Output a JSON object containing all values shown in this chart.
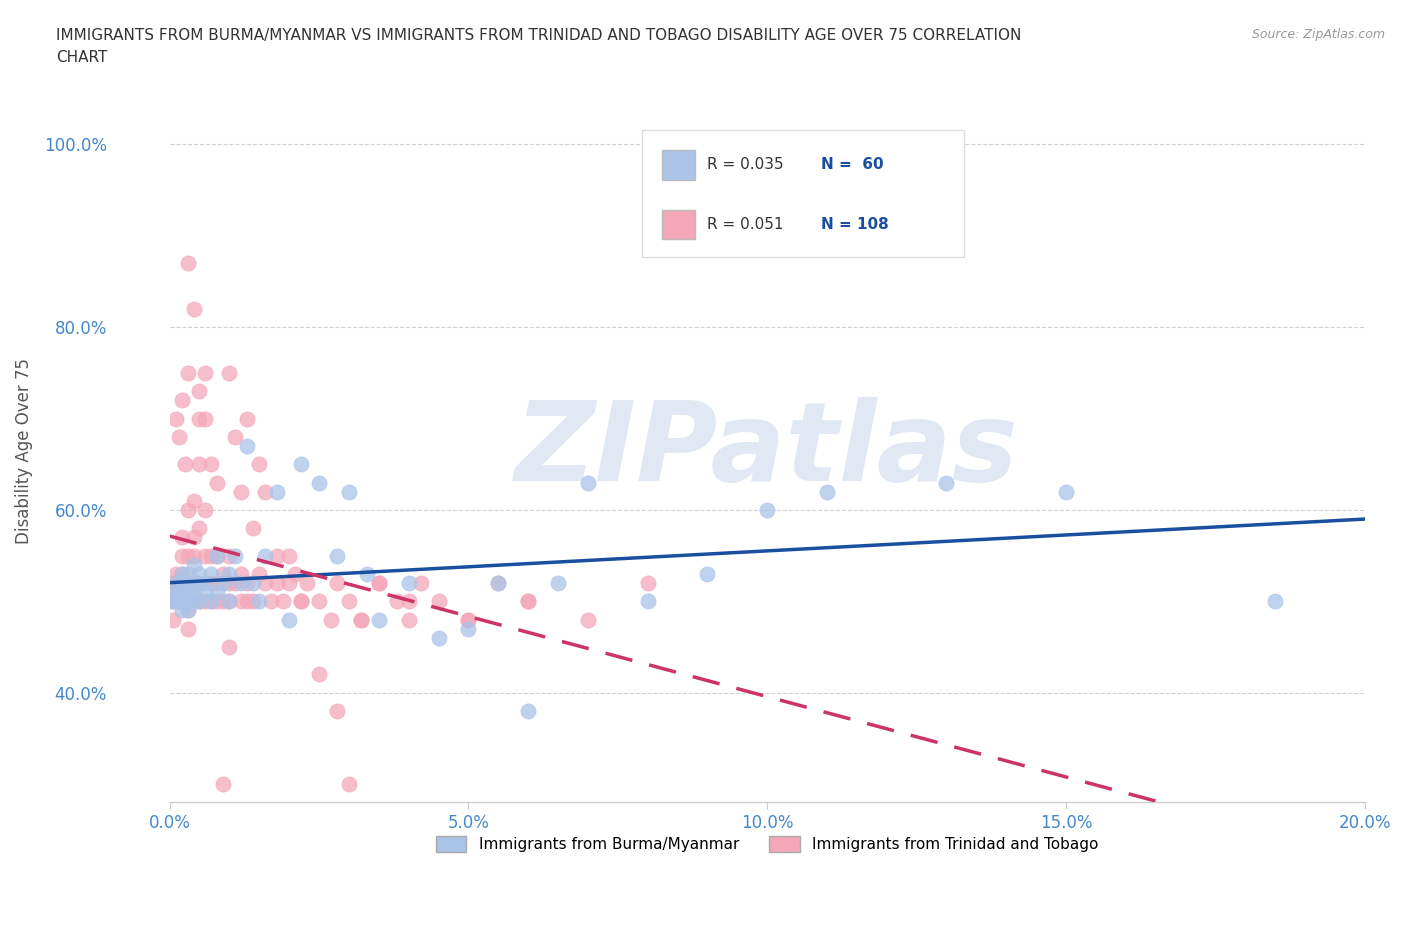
{
  "title": "IMMIGRANTS FROM BURMA/MYANMAR VS IMMIGRANTS FROM TRINIDAD AND TOBAGO DISABILITY AGE OVER 75 CORRELATION\nCHART",
  "source": "Source: ZipAtlas.com",
  "xlabel": "",
  "ylabel": "Disability Age Over 75",
  "xlim": [
    0.0,
    0.2
  ],
  "ylim": [
    0.28,
    1.05
  ],
  "xticks": [
    0.0,
    0.05,
    0.1,
    0.15,
    0.2
  ],
  "xtick_labels": [
    "0.0%",
    "5.0%",
    "10.0%",
    "15.0%",
    "20.0%"
  ],
  "yticks": [
    0.4,
    0.6,
    0.8,
    1.0
  ],
  "ytick_labels": [
    "40.0%",
    "60.0%",
    "80.0%",
    "100.0%"
  ],
  "color_burma": "#aac4e8",
  "color_trinidad": "#f4a7b9",
  "line_color_burma": "#1a4fa0",
  "line_color_trinidad": "#cc3366",
  "legend_R_burma": "R = 0.035",
  "legend_N_burma": "N =  60",
  "legend_R_trinidad": "R = 0.051",
  "legend_N_trinidad": "N = 108",
  "legend_label_burma": "Immigrants from Burma/Myanmar",
  "legend_label_trinidad": "Immigrants from Trinidad and Tobago",
  "watermark": "ZIPatlas",
  "grid_color": "#cccccc",
  "bg_color": "#ffffff",
  "title_color": "#333333",
  "tick_color": "#4488cc",
  "watermark_color": "#c8d8ea",
  "watermark_alpha": 0.55,
  "scatter_burma_x": [
    0.0005,
    0.001,
    0.001,
    0.001,
    0.0015,
    0.0015,
    0.002,
    0.002,
    0.002,
    0.002,
    0.0025,
    0.003,
    0.003,
    0.003,
    0.003,
    0.003,
    0.004,
    0.004,
    0.004,
    0.004,
    0.005,
    0.005,
    0.005,
    0.006,
    0.006,
    0.007,
    0.007,
    0.008,
    0.008,
    0.009,
    0.01,
    0.01,
    0.011,
    0.012,
    0.013,
    0.014,
    0.015,
    0.016,
    0.018,
    0.02,
    0.022,
    0.025,
    0.028,
    0.03,
    0.033,
    0.035,
    0.04,
    0.045,
    0.05,
    0.055,
    0.06,
    0.065,
    0.07,
    0.08,
    0.09,
    0.1,
    0.11,
    0.13,
    0.15,
    0.185
  ],
  "scatter_burma_y": [
    0.5,
    0.5,
    0.51,
    0.52,
    0.5,
    0.51,
    0.49,
    0.51,
    0.52,
    0.53,
    0.5,
    0.49,
    0.5,
    0.51,
    0.52,
    0.53,
    0.5,
    0.51,
    0.52,
    0.54,
    0.5,
    0.52,
    0.53,
    0.51,
    0.52,
    0.5,
    0.53,
    0.51,
    0.55,
    0.52,
    0.5,
    0.53,
    0.55,
    0.52,
    0.67,
    0.52,
    0.5,
    0.55,
    0.62,
    0.48,
    0.65,
    0.63,
    0.55,
    0.62,
    0.53,
    0.48,
    0.52,
    0.46,
    0.47,
    0.52,
    0.38,
    0.52,
    0.63,
    0.5,
    0.53,
    0.6,
    0.62,
    0.63,
    0.62,
    0.5
  ],
  "scatter_trinidad_x": [
    0.0003,
    0.0005,
    0.0005,
    0.001,
    0.001,
    0.001,
    0.001,
    0.001,
    0.0015,
    0.0015,
    0.0015,
    0.002,
    0.002,
    0.002,
    0.002,
    0.002,
    0.002,
    0.0025,
    0.0025,
    0.003,
    0.003,
    0.003,
    0.003,
    0.003,
    0.003,
    0.003,
    0.003,
    0.004,
    0.004,
    0.004,
    0.004,
    0.004,
    0.005,
    0.005,
    0.005,
    0.005,
    0.006,
    0.006,
    0.006,
    0.007,
    0.007,
    0.007,
    0.008,
    0.008,
    0.008,
    0.009,
    0.009,
    0.01,
    0.01,
    0.01,
    0.011,
    0.012,
    0.012,
    0.013,
    0.013,
    0.014,
    0.015,
    0.016,
    0.017,
    0.018,
    0.019,
    0.02,
    0.021,
    0.022,
    0.023,
    0.025,
    0.027,
    0.028,
    0.03,
    0.032,
    0.035,
    0.038,
    0.04,
    0.042,
    0.045,
    0.05,
    0.055,
    0.06,
    0.07,
    0.08,
    0.003,
    0.004,
    0.005,
    0.005,
    0.006,
    0.006,
    0.007,
    0.008,
    0.009,
    0.01,
    0.01,
    0.011,
    0.012,
    0.013,
    0.014,
    0.015,
    0.016,
    0.018,
    0.02,
    0.022,
    0.025,
    0.028,
    0.03,
    0.032,
    0.035,
    0.04,
    0.05,
    0.06
  ],
  "scatter_trinidad_y": [
    0.5,
    0.48,
    0.52,
    0.5,
    0.51,
    0.52,
    0.53,
    0.7,
    0.5,
    0.52,
    0.68,
    0.5,
    0.52,
    0.53,
    0.55,
    0.57,
    0.72,
    0.5,
    0.65,
    0.47,
    0.49,
    0.5,
    0.51,
    0.52,
    0.55,
    0.6,
    0.75,
    0.5,
    0.52,
    0.55,
    0.57,
    0.61,
    0.5,
    0.52,
    0.58,
    0.65,
    0.5,
    0.55,
    0.6,
    0.5,
    0.52,
    0.55,
    0.5,
    0.52,
    0.55,
    0.5,
    0.53,
    0.5,
    0.52,
    0.55,
    0.52,
    0.5,
    0.53,
    0.5,
    0.52,
    0.5,
    0.53,
    0.52,
    0.5,
    0.52,
    0.5,
    0.52,
    0.53,
    0.5,
    0.52,
    0.5,
    0.48,
    0.52,
    0.5,
    0.48,
    0.52,
    0.5,
    0.48,
    0.52,
    0.5,
    0.48,
    0.52,
    0.5,
    0.48,
    0.52,
    0.87,
    0.82,
    0.73,
    0.7,
    0.75,
    0.7,
    0.65,
    0.63,
    0.3,
    0.75,
    0.45,
    0.68,
    0.62,
    0.7,
    0.58,
    0.65,
    0.62,
    0.55,
    0.55,
    0.5,
    0.42,
    0.38,
    0.3,
    0.48,
    0.52,
    0.5,
    0.48,
    0.5
  ]
}
